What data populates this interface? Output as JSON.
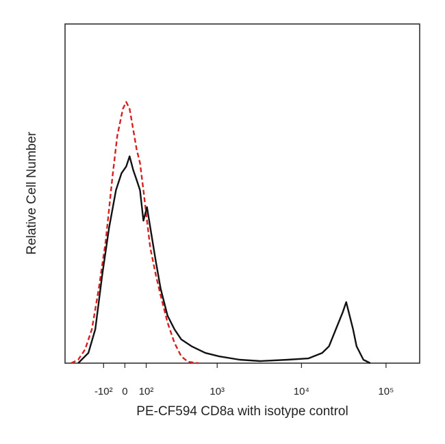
{
  "chart_data": {
    "type": "line",
    "xlabel": "PE-CF594 CD8a with isotype control",
    "ylabel": "Relative Cell Number",
    "xscale": "biexponential",
    "xlim": [
      -400,
      250000
    ],
    "xticks": [
      {
        "value": -100,
        "label": "-10²"
      },
      0,
      {
        "value": 100,
        "label": "10²"
      },
      {
        "value": 1000,
        "label": "10³"
      },
      {
        "value": 10000,
        "label": "10⁴"
      },
      {
        "value": 100000,
        "label": "10⁵"
      }
    ],
    "ylim": [
      0,
      100
    ],
    "series": [
      {
        "color": "#d62020",
        "style": "dashed",
        "x": [
          -333,
          -268,
          -214,
          -167,
          -126,
          -89,
          -56,
          -34,
          -9,
          6,
          21,
          37,
          53,
          69,
          86,
          104,
          122,
          154,
          185,
          235,
          293,
          361,
          441,
          593
        ],
        "values": [
          0,
          1,
          4,
          10,
          22,
          36,
          55,
          67,
          75,
          77,
          75,
          69,
          63,
          59,
          51,
          42,
          34,
          26,
          20,
          12,
          6,
          2,
          0.4,
          0
        ]
      },
      {
        "color": "#111111",
        "style": "solid",
        "x": [
          -268,
          -190,
          -146,
          -107,
          -72,
          -40,
          -15,
          6,
          21,
          37,
          53,
          69,
          86,
          104,
          122,
          154,
          185,
          235,
          293,
          361,
          487,
          719,
          1053,
          1855,
          3260,
          6880,
          12060,
          17560,
          21170,
          25530,
          30770,
          33790,
          37130,
          40770,
          44790,
          53990,
          65060
        ],
        "values": [
          0,
          3,
          10,
          26,
          40,
          51,
          56,
          58,
          61,
          57,
          54,
          51,
          42,
          46,
          40,
          30,
          22,
          14,
          10,
          7,
          5,
          3,
          2,
          1,
          0.6,
          1,
          1.4,
          3,
          5,
          10,
          15,
          18,
          14,
          10,
          5,
          1,
          0
        ]
      }
    ]
  }
}
